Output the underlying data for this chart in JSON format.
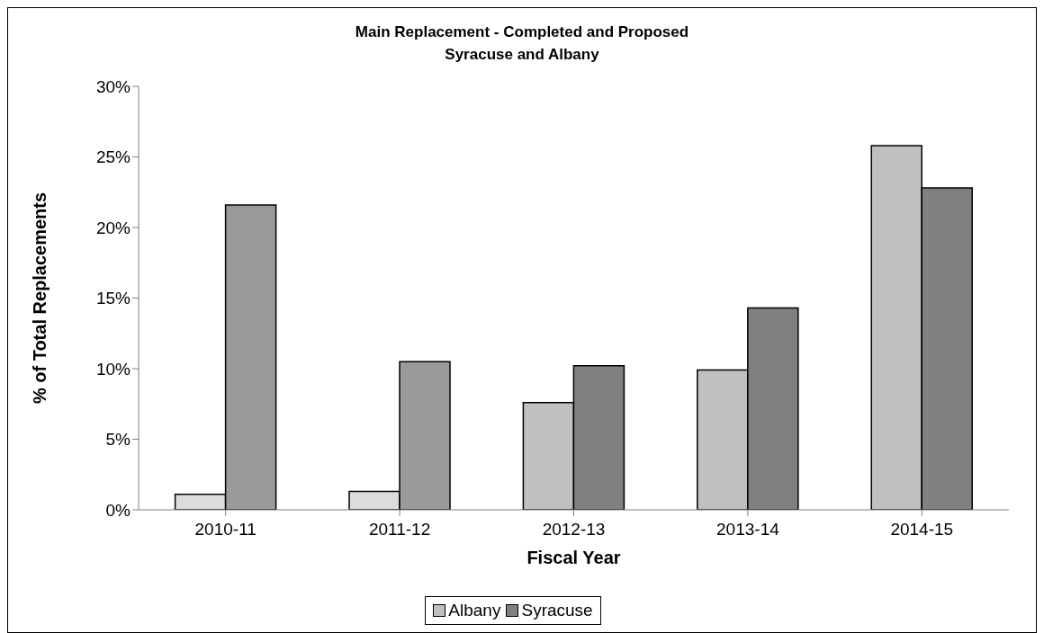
{
  "chart_data": {
    "type": "bar",
    "title": "Main Replacement - Completed and Proposed",
    "subtitle": "Syracuse and Albany",
    "xlabel": "Fiscal Year",
    "ylabel": "% of Total Replacements",
    "categories": [
      "2010-11",
      "2011-12",
      "2012-13",
      "2013-14",
      "2014-15"
    ],
    "series": [
      {
        "name": "Albany",
        "color": "#c0c0c0",
        "colors": [
          "#dcdcdc",
          "#dcdcdc",
          "#c0c0c0",
          "#c0c0c0",
          "#c0c0c0"
        ],
        "values": [
          1.1,
          1.3,
          7.6,
          9.9,
          25.8
        ]
      },
      {
        "name": "Syracuse",
        "color": "#808080",
        "colors": [
          "#9a9a9a",
          "#9a9a9a",
          "#808080",
          "#808080",
          "#808080"
        ],
        "values": [
          21.6,
          10.5,
          10.2,
          14.3,
          22.8
        ]
      }
    ],
    "ylim": [
      0,
      30
    ],
    "yticks": [
      {
        "value": 0,
        "label": "0%"
      },
      {
        "value": 5,
        "label": "5%"
      },
      {
        "value": 10,
        "label": "10%"
      },
      {
        "value": 15,
        "label": "15%"
      },
      {
        "value": 20,
        "label": "20%"
      },
      {
        "value": 25,
        "label": "25%"
      },
      {
        "value": 30,
        "label": "30%"
      }
    ],
    "grid": false,
    "legend": "bottom"
  }
}
